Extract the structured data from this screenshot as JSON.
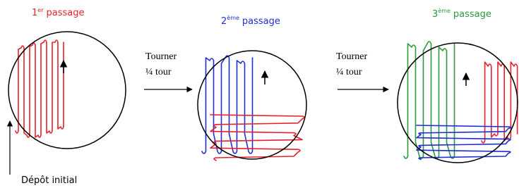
{
  "passes": [
    {
      "number": "1",
      "sup": "er",
      "word": "passage"
    },
    {
      "number": "2",
      "sup": "ème",
      "word": "passage"
    },
    {
      "number": "3",
      "sup": "ème",
      "word": "passage"
    }
  ],
  "arrows": [
    {
      "line1": "Tourner",
      "line2": "¼ tour"
    },
    {
      "line1": "Tourner",
      "line2": "¼ tour"
    }
  ],
  "caption": "Dépôt initial"
}
